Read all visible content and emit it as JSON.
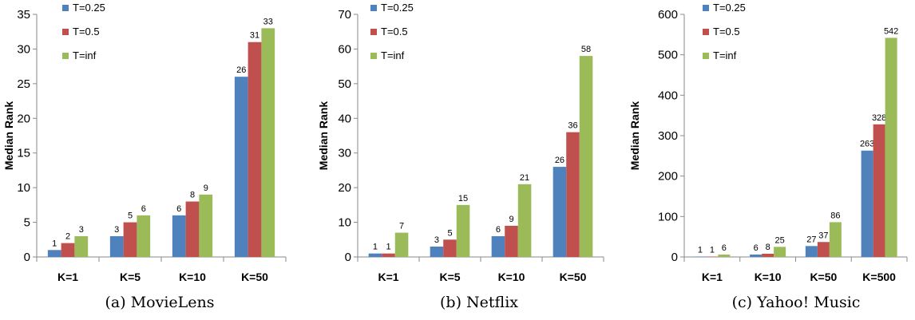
{
  "chart_data": [
    {
      "type": "bar",
      "caption": "(a) MovieLens",
      "ylabel": "Median Rank",
      "categories": [
        "K=1",
        "K=5",
        "K=10",
        "K=50"
      ],
      "ylim": [
        0,
        35
      ],
      "yticks": [
        0,
        5,
        10,
        15,
        20,
        25,
        30,
        35
      ],
      "legend_position": "top-left",
      "grid": false,
      "series": [
        {
          "name": "T=0.25",
          "color": "#4F81BD",
          "values": [
            1,
            3,
            6,
            26
          ]
        },
        {
          "name": "T=0.5",
          "color": "#C0504D",
          "values": [
            2,
            5,
            8,
            31
          ]
        },
        {
          "name": "T=inf",
          "color": "#9BBB59",
          "values": [
            3,
            6,
            9,
            33
          ]
        }
      ]
    },
    {
      "type": "bar",
      "caption": "(b) Netflix",
      "ylabel": "Median Rank",
      "categories": [
        "K=1",
        "K=5",
        "K=10",
        "K=50"
      ],
      "ylim": [
        0,
        70
      ],
      "yticks": [
        0,
        10,
        20,
        30,
        40,
        50,
        60,
        70
      ],
      "legend_position": "top-left",
      "grid": false,
      "series": [
        {
          "name": "T=0.25",
          "color": "#4F81BD",
          "values": [
            1,
            3,
            6,
            26
          ]
        },
        {
          "name": "T=0.5",
          "color": "#C0504D",
          "values": [
            1,
            5,
            9,
            36
          ]
        },
        {
          "name": "T=inf",
          "color": "#9BBB59",
          "values": [
            7,
            15,
            21,
            58
          ]
        }
      ]
    },
    {
      "type": "bar",
      "caption": "(c) Yahoo! Music",
      "ylabel": "Median Rank",
      "categories": [
        "K=1",
        "K=10",
        "K=50",
        "K=500"
      ],
      "ylim": [
        0,
        600
      ],
      "yticks": [
        0,
        100,
        200,
        300,
        400,
        500,
        600
      ],
      "legend_position": "top-left",
      "grid": false,
      "series": [
        {
          "name": "T=0.25",
          "color": "#4F81BD",
          "values": [
            1,
            6,
            27,
            263
          ]
        },
        {
          "name": "T=0.5",
          "color": "#C0504D",
          "values": [
            1,
            8,
            37,
            328
          ]
        },
        {
          "name": "T=inf",
          "color": "#9BBB59",
          "values": [
            6,
            25,
            86,
            542
          ]
        }
      ]
    }
  ]
}
